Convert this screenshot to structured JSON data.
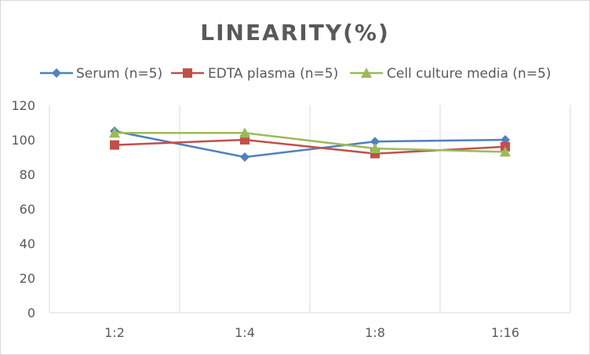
{
  "chart_data": {
    "type": "line",
    "title": "LINEARITY(%)",
    "categories": [
      "1:2",
      "1:4",
      "1:8",
      "1:16"
    ],
    "series": [
      {
        "name": "Serum (n=5)",
        "values": [
          105,
          90,
          99,
          100
        ],
        "color": "#4f81bd",
        "marker": "diamond"
      },
      {
        "name": "EDTA plasma (n=5)",
        "values": [
          97,
          100,
          92,
          96
        ],
        "color": "#c0504d",
        "marker": "square"
      },
      {
        "name": "Cell culture media (n=5)",
        "values": [
          104,
          104,
          95,
          93
        ],
        "color": "#9bbb59",
        "marker": "triangle"
      }
    ],
    "yticks": [
      "0",
      "20",
      "40",
      "60",
      "80",
      "100",
      "120"
    ],
    "ylim": [
      0,
      120
    ],
    "grid": "vertical",
    "legend_position": "top"
  }
}
